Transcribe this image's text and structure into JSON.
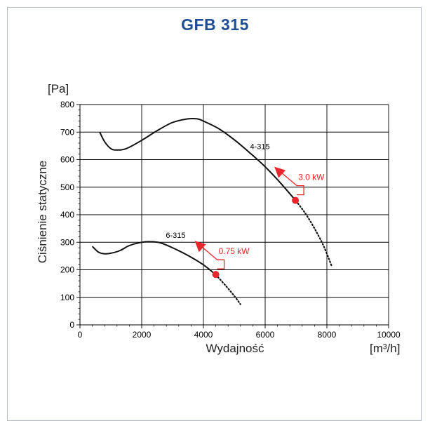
{
  "title": "GFB 315",
  "chart_data": {
    "type": "line",
    "xlabel": "Wydajność",
    "ylabel": "Ciśnienie statyczne",
    "x_unit": "[m³/h]",
    "y_unit": "[Pa]",
    "xlim": [
      0,
      10000
    ],
    "ylim": [
      0,
      800
    ],
    "x_ticks": [
      "0",
      "2000",
      "4000",
      "6000",
      "8000",
      "10000"
    ],
    "y_ticks": [
      "0",
      "100",
      "200",
      "300",
      "400",
      "500",
      "600",
      "700",
      "800"
    ],
    "grid": true,
    "series": [
      {
        "name": "4-315",
        "x": [
          640,
          800,
          1000,
          1200,
          1500,
          2000,
          2500,
          3000,
          3500,
          3800,
          4000,
          4500,
          5000,
          5500,
          6000,
          6500,
          7000
        ],
        "y": [
          700,
          665,
          640,
          635,
          640,
          670,
          705,
          735,
          748,
          748,
          740,
          712,
          672,
          625,
          574,
          515,
          450
        ],
        "extension_x": [
          7000,
          7300,
          7600,
          7900,
          8150
        ],
        "extension_y": [
          450,
          405,
          350,
          285,
          215
        ],
        "operating_point": {
          "x": 6980,
          "y": 452,
          "power": "3.0 kW"
        }
      },
      {
        "name": "6-315",
        "x": [
          400,
          600,
          800,
          1000,
          1300,
          1600,
          2000,
          2300,
          2600,
          3000,
          3500,
          4000,
          4400
        ],
        "y": [
          285,
          264,
          258,
          260,
          270,
          288,
          300,
          302,
          298,
          280,
          252,
          218,
          182
        ],
        "extension_x": [
          4400,
          4700,
          5000,
          5200
        ],
        "extension_y": [
          182,
          145,
          105,
          75
        ],
        "operating_point": {
          "x": 4400,
          "y": 183,
          "power": "0.75 kW"
        }
      }
    ]
  }
}
